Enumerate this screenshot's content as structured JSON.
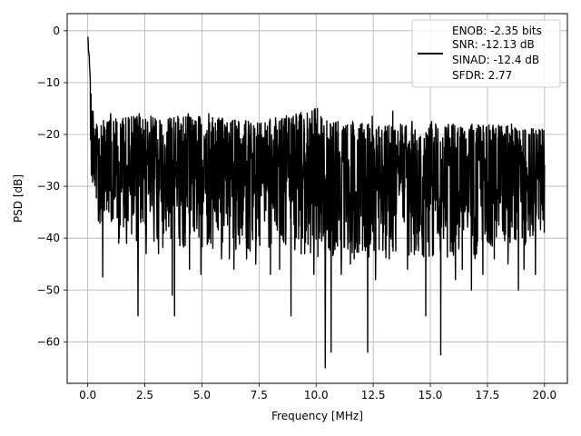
{
  "chart_data": {
    "type": "line",
    "xlabel": "Frequency [MHz]",
    "ylabel": "PSD [dB]",
    "xlim": [
      -0.9,
      21.0
    ],
    "ylim": [
      -68,
      3.3
    ],
    "xticks": [
      0.0,
      2.5,
      5.0,
      7.5,
      10.0,
      12.5,
      15.0,
      17.5,
      20.0
    ],
    "xtick_labels": [
      "0.0",
      "2.5",
      "5.0",
      "7.5",
      "10.0",
      "12.5",
      "15.0",
      "17.5",
      "20.0"
    ],
    "yticks": [
      0,
      -10,
      -20,
      -30,
      -40,
      -50,
      -60
    ],
    "ytick_labels": [
      "0",
      "−10",
      "−20",
      "−30",
      "−40",
      "−50",
      "−60"
    ],
    "grid": true,
    "legend_position": "upper right",
    "legend_lines": [
      "ENOB: -2.35 bits",
      "SNR: -12.13 dB",
      "SINAD: -12.4 dB",
      "SFDR: 2.77"
    ],
    "line_color": "#000000",
    "series": [
      {
        "frequency_range": [
          0,
          20
        ],
        "envelope_upper": [
          [
            0.0,
            0
          ],
          [
            0.05,
            -3
          ],
          [
            0.1,
            -7
          ],
          [
            0.15,
            -11
          ],
          [
            0.2,
            -14
          ],
          [
            0.3,
            -16
          ],
          [
            0.5,
            -17.5
          ],
          [
            1.0,
            -17
          ],
          [
            2.0,
            -16.5
          ],
          [
            3.5,
            -16.5
          ],
          [
            5.0,
            -16.5
          ],
          [
            7.5,
            -17.5
          ],
          [
            10.0,
            -15
          ],
          [
            10.5,
            -17.5
          ],
          [
            12.5,
            -18
          ],
          [
            15.0,
            -18
          ],
          [
            17.5,
            -18
          ],
          [
            20.0,
            -19
          ]
        ],
        "envelope_lower": [
          [
            0.0,
            -18
          ],
          [
            0.3,
            -36
          ],
          [
            1.0,
            -40
          ],
          [
            2.5,
            -42
          ],
          [
            5.0,
            -42
          ],
          [
            7.5,
            -43
          ],
          [
            10.0,
            -44
          ],
          [
            12.5,
            -44
          ],
          [
            15.0,
            -44
          ],
          [
            17.5,
            -44
          ],
          [
            20.0,
            -40
          ]
        ],
        "center_level": -27.5,
        "dips": [
          [
            0.65,
            -47.5
          ],
          [
            1.35,
            -41
          ],
          [
            1.7,
            -41
          ],
          [
            2.2,
            -55
          ],
          [
            2.55,
            -43
          ],
          [
            3.1,
            -43
          ],
          [
            3.7,
            -51
          ],
          [
            3.8,
            -55
          ],
          [
            4.45,
            -46
          ],
          [
            4.95,
            -47
          ],
          [
            5.3,
            -45
          ],
          [
            5.85,
            -44
          ],
          [
            6.2,
            -44
          ],
          [
            6.4,
            -46
          ],
          [
            6.95,
            -44
          ],
          [
            7.35,
            -45
          ],
          [
            8.0,
            -47
          ],
          [
            8.4,
            -46
          ],
          [
            8.9,
            -55
          ],
          [
            9.5,
            -43
          ],
          [
            9.9,
            -47
          ],
          [
            10.4,
            -65
          ],
          [
            10.65,
            -62
          ],
          [
            11.1,
            -47
          ],
          [
            11.5,
            -45
          ],
          [
            12.25,
            -62
          ],
          [
            12.6,
            -48
          ],
          [
            13.2,
            -44
          ],
          [
            14.0,
            -46
          ],
          [
            14.8,
            -55
          ],
          [
            15.45,
            -62.5
          ],
          [
            16.1,
            -48
          ],
          [
            16.4,
            -46
          ],
          [
            16.8,
            -50
          ],
          [
            17.3,
            -47
          ],
          [
            17.8,
            -44
          ],
          [
            18.4,
            -45
          ],
          [
            18.85,
            -50
          ],
          [
            19.1,
            -46
          ],
          [
            19.6,
            -47
          ],
          [
            19.9,
            -39
          ]
        ],
        "peaks": [
          [
            1.0,
            -16
          ],
          [
            2.25,
            -16
          ],
          [
            2.95,
            -17
          ],
          [
            3.65,
            -17
          ],
          [
            4.4,
            -16
          ],
          [
            5.3,
            -16
          ],
          [
            6.6,
            -17.5
          ],
          [
            7.95,
            -17.5
          ],
          [
            9.0,
            -16.5
          ],
          [
            10.05,
            -15
          ],
          [
            10.95,
            -17.5
          ],
          [
            11.6,
            -17.5
          ],
          [
            12.45,
            -17.5
          ],
          [
            12.45,
            -16.5
          ],
          [
            13.35,
            -15.5
          ],
          [
            14.2,
            -17.5
          ],
          [
            15.05,
            -17.5
          ],
          [
            16.0,
            -18
          ],
          [
            17.15,
            -18.5
          ],
          [
            18.55,
            -18
          ],
          [
            19.9,
            -19
          ]
        ]
      }
    ]
  }
}
